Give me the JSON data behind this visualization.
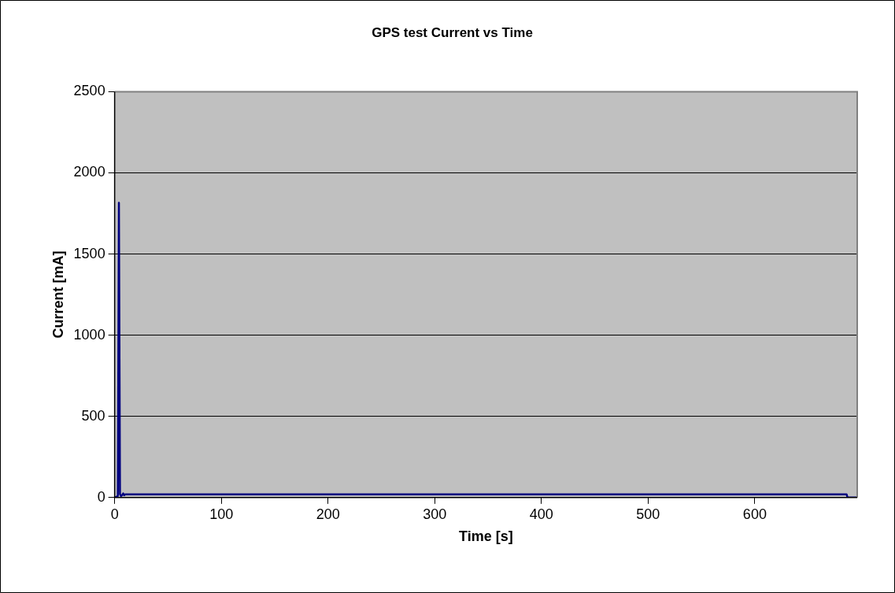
{
  "chart_data": {
    "type": "line",
    "title": "GPS test Current vs Time",
    "xlabel": "Time [s]",
    "ylabel": "Current [mA]",
    "x": [
      0,
      2,
      3,
      4,
      5,
      6,
      7,
      8,
      9,
      10,
      12,
      100,
      200,
      300,
      400,
      500,
      600,
      686,
      687,
      696
    ],
    "series": [
      {
        "color": "#000080",
        "values": [
          0,
          5,
          10,
          1816,
          20,
          10,
          15,
          25,
          15,
          20,
          20,
          20,
          20,
          20,
          20,
          20,
          20,
          20,
          0,
          0
        ]
      }
    ],
    "xlim": [
      0,
      696
    ],
    "xticks": [
      0,
      100,
      200,
      300,
      400,
      500,
      600
    ],
    "ylim": [
      0,
      2500
    ],
    "yticks": [
      0,
      500,
      1000,
      1500,
      2000,
      2500
    ],
    "grid": "y",
    "legend": false,
    "marker": "none",
    "line_style": "solid"
  }
}
